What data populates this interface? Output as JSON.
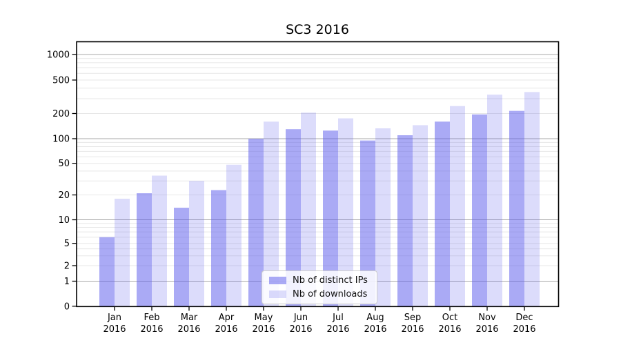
{
  "title_text": "SC3 2016",
  "colors": {
    "bar_dark": "rgba(92,92,235,0.52)",
    "bar_light": "rgba(92,92,235,0.215)",
    "grid_major": "#a8a8a8",
    "grid_minor": "#e7e7e7",
    "axis": "#000000",
    "text": "#000000"
  },
  "legend": {
    "position": "lower center",
    "items": [
      {
        "label": "Nb of distinct IPs",
        "color_key": "bar_dark"
      },
      {
        "label": "Nb of downloads",
        "color_key": "bar_light"
      }
    ]
  },
  "chart_data": {
    "type": "bar",
    "title": "SC3 2016",
    "categories": [
      "Jan 2016",
      "Feb 2016",
      "Mar 2016",
      "Apr 2016",
      "May 2016",
      "Jun 2016",
      "Jul 2016",
      "Aug 2016",
      "Sep 2016",
      "Oct 2016",
      "Nov 2016",
      "Dec 2016"
    ],
    "month_labels": [
      "Jan",
      "Feb",
      "Mar",
      "Apr",
      "May",
      "Jun",
      "Jul",
      "Aug",
      "Sep",
      "Oct",
      "Nov",
      "Dec"
    ],
    "year_label": "2016",
    "series": [
      {
        "name": "Nb of distinct IPs",
        "color_key": "bar_dark",
        "values": [
          6,
          21,
          14,
          23,
          100,
          130,
          125,
          95,
          110,
          160,
          195,
          215
        ]
      },
      {
        "name": "Nb of downloads",
        "color_key": "bar_light",
        "values": [
          18,
          35,
          30,
          48,
          160,
          205,
          175,
          133,
          145,
          245,
          335,
          360
        ]
      }
    ],
    "y_scale": "symlog",
    "y_ticks": [
      0,
      1,
      2,
      5,
      10,
      20,
      50,
      100,
      200,
      500,
      1000
    ],
    "y_major_gridlines": [
      1,
      10,
      100,
      1000
    ],
    "y_minor_gridlines": [
      2,
      3,
      4,
      5,
      6,
      7,
      8,
      9,
      20,
      30,
      40,
      50,
      60,
      70,
      80,
      90,
      200,
      300,
      400,
      500,
      600,
      700,
      800,
      900
    ],
    "grid": true,
    "xlabel": "",
    "ylabel": ""
  }
}
